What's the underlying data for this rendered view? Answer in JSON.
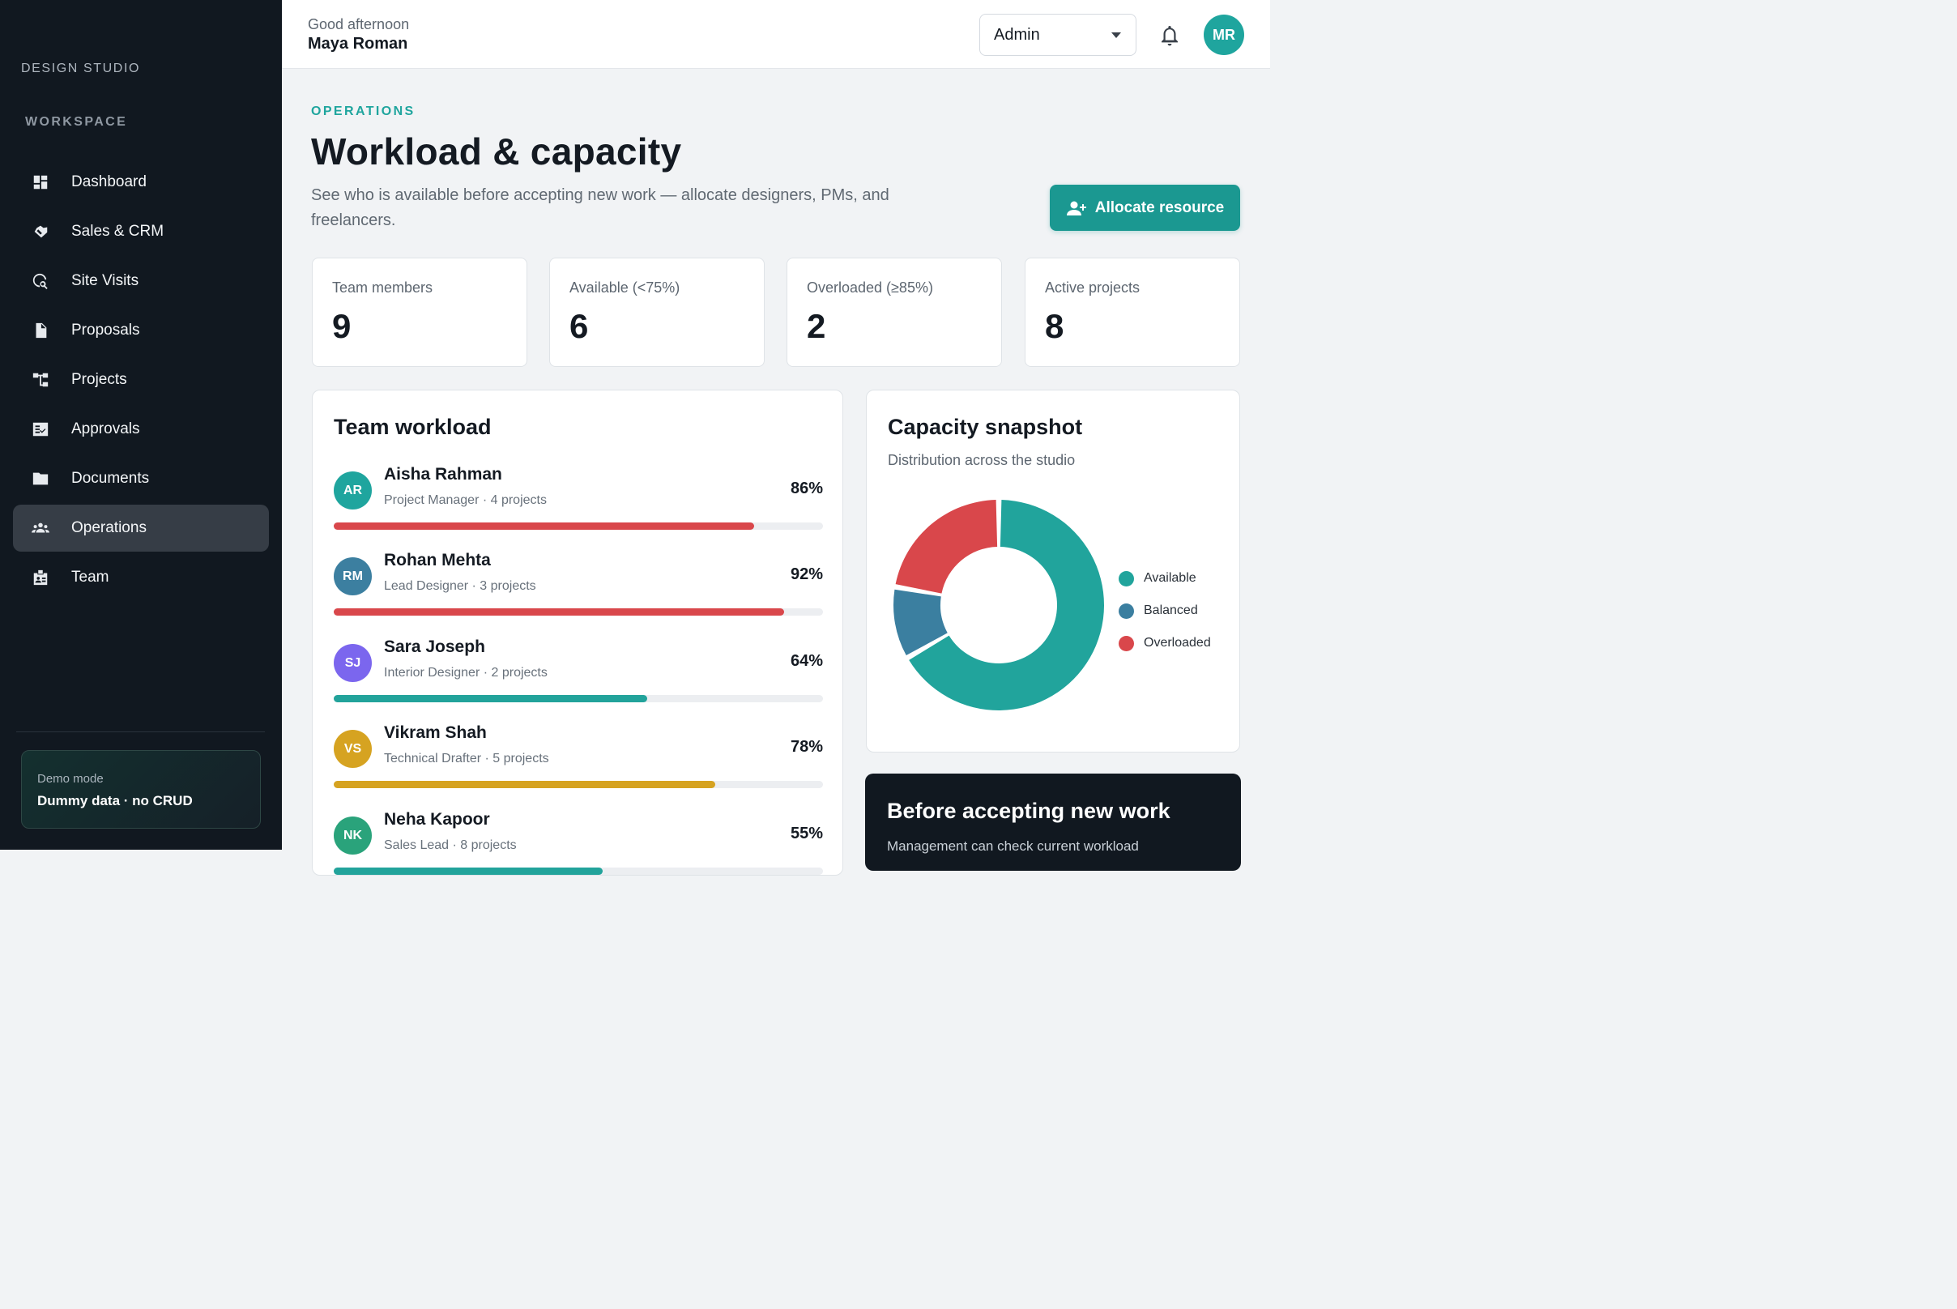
{
  "sidebar": {
    "brand": "DESIGN STUDIO",
    "section_label": "WORKSPACE",
    "items": [
      {
        "label": "Dashboard",
        "icon": "dashboard-icon"
      },
      {
        "label": "Sales & CRM",
        "icon": "handshake-icon"
      },
      {
        "label": "Site Visits",
        "icon": "travel-explore-icon"
      },
      {
        "label": "Proposals",
        "icon": "document-icon"
      },
      {
        "label": "Projects",
        "icon": "account-tree-icon"
      },
      {
        "label": "Approvals",
        "icon": "fact-check-icon"
      },
      {
        "label": "Documents",
        "icon": "folder-icon"
      },
      {
        "label": "Operations",
        "icon": "groups-icon",
        "active": true
      },
      {
        "label": "Team",
        "icon": "badge-icon"
      }
    ],
    "demo": {
      "title": "Demo mode",
      "subtitle": "Dummy data · no CRUD"
    }
  },
  "topbar": {
    "greeting": "Good afternoon",
    "user_name": "Maya Roman",
    "role_selected": "Admin",
    "avatar_initials": "MR",
    "bell_icon": "bell-icon"
  },
  "header": {
    "eyebrow": "OPERATIONS",
    "title": "Workload & capacity",
    "description": "See who is available before accepting new work — allocate designers, PMs, and freelancers.",
    "allocate_button": "Allocate resource"
  },
  "stats": [
    {
      "label": "Team members",
      "value": "9"
    },
    {
      "label": "Available (<75%)",
      "value": "6"
    },
    {
      "label": "Overloaded (≥85%)",
      "value": "2"
    },
    {
      "label": "Active projects",
      "value": "8"
    }
  ],
  "team_workload": {
    "title": "Team workload",
    "members": [
      {
        "initials": "AR",
        "name": "Aisha Rahman",
        "role": "Project Manager · 4 projects",
        "percent": "86%",
        "load": 0.86,
        "color": "#d9474b",
        "avatar_color": "#1fa59e"
      },
      {
        "initials": "RM",
        "name": "Rohan Mehta",
        "role": "Lead Designer · 3 projects",
        "percent": "92%",
        "load": 0.92,
        "color": "#d9474b",
        "avatar_color": "#3c7fa0"
      },
      {
        "initials": "SJ",
        "name": "Sara Joseph",
        "role": "Interior Designer · 2 projects",
        "percent": "64%",
        "load": 0.64,
        "color": "#22a39b",
        "avatar_color": "#7b66ee"
      },
      {
        "initials": "VS",
        "name": "Vikram Shah",
        "role": "Technical Drafter · 5 projects",
        "percent": "78%",
        "load": 0.78,
        "color": "#d6a321",
        "avatar_color": "#d6a321"
      },
      {
        "initials": "NK",
        "name": "Neha Kapoor",
        "role": "Sales Lead · 8 projects",
        "percent": "55%",
        "load": 0.55,
        "color": "#22a39b",
        "avatar_color": "#2aa37b"
      }
    ]
  },
  "capacity": {
    "title": "Capacity snapshot",
    "subtitle": "Distribution across the studio",
    "legend": [
      {
        "label": "Available",
        "color": "#21a49c"
      },
      {
        "label": "Balanced",
        "color": "#3b7fa0"
      },
      {
        "label": "Overloaded",
        "color": "#d9474b"
      }
    ],
    "chart_data": {
      "type": "pie",
      "categories": [
        "Available",
        "Balanced",
        "Overloaded"
      ],
      "values": [
        6,
        1,
        2
      ],
      "colors": [
        "#21a49c",
        "#3b7fa0",
        "#d9474b"
      ]
    }
  },
  "before_work": {
    "title": "Before accepting new work",
    "text": "Management can check current workload"
  }
}
